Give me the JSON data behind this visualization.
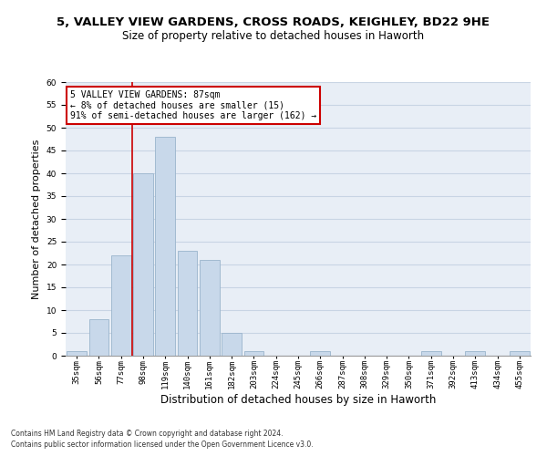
{
  "title_line1": "5, VALLEY VIEW GARDENS, CROSS ROADS, KEIGHLEY, BD22 9HE",
  "title_line2": "Size of property relative to detached houses in Haworth",
  "xlabel": "Distribution of detached houses by size in Haworth",
  "ylabel": "Number of detached properties",
  "bar_labels": [
    "35sqm",
    "56sqm",
    "77sqm",
    "98sqm",
    "119sqm",
    "140sqm",
    "161sqm",
    "182sqm",
    "203sqm",
    "224sqm",
    "245sqm",
    "266sqm",
    "287sqm",
    "308sqm",
    "329sqm",
    "350sqm",
    "371sqm",
    "392sqm",
    "413sqm",
    "434sqm",
    "455sqm"
  ],
  "bar_values": [
    1,
    8,
    22,
    40,
    48,
    23,
    21,
    5,
    1,
    0,
    0,
    1,
    0,
    0,
    0,
    0,
    1,
    0,
    1,
    0,
    1
  ],
  "bar_color": "#c8d8ea",
  "bar_edge_color": "#9ab4cc",
  "vline_x": 2.5,
  "vline_color": "#cc0000",
  "annotation_text": "5 VALLEY VIEW GARDENS: 87sqm\n← 8% of detached houses are smaller (15)\n91% of semi-detached houses are larger (162) →",
  "annotation_box_color": "#ffffff",
  "annotation_box_edge": "#cc0000",
  "ylim": [
    0,
    60
  ],
  "yticks": [
    0,
    5,
    10,
    15,
    20,
    25,
    30,
    35,
    40,
    45,
    50,
    55,
    60
  ],
  "grid_color": "#c8d4e4",
  "background_color": "#e8eef6",
  "footer_line1": "Contains HM Land Registry data © Crown copyright and database right 2024.",
  "footer_line2": "Contains public sector information licensed under the Open Government Licence v3.0.",
  "title_fontsize": 9.5,
  "subtitle_fontsize": 8.5,
  "tick_fontsize": 6.5,
  "ylabel_fontsize": 8,
  "xlabel_fontsize": 8.5,
  "footer_fontsize": 5.5
}
